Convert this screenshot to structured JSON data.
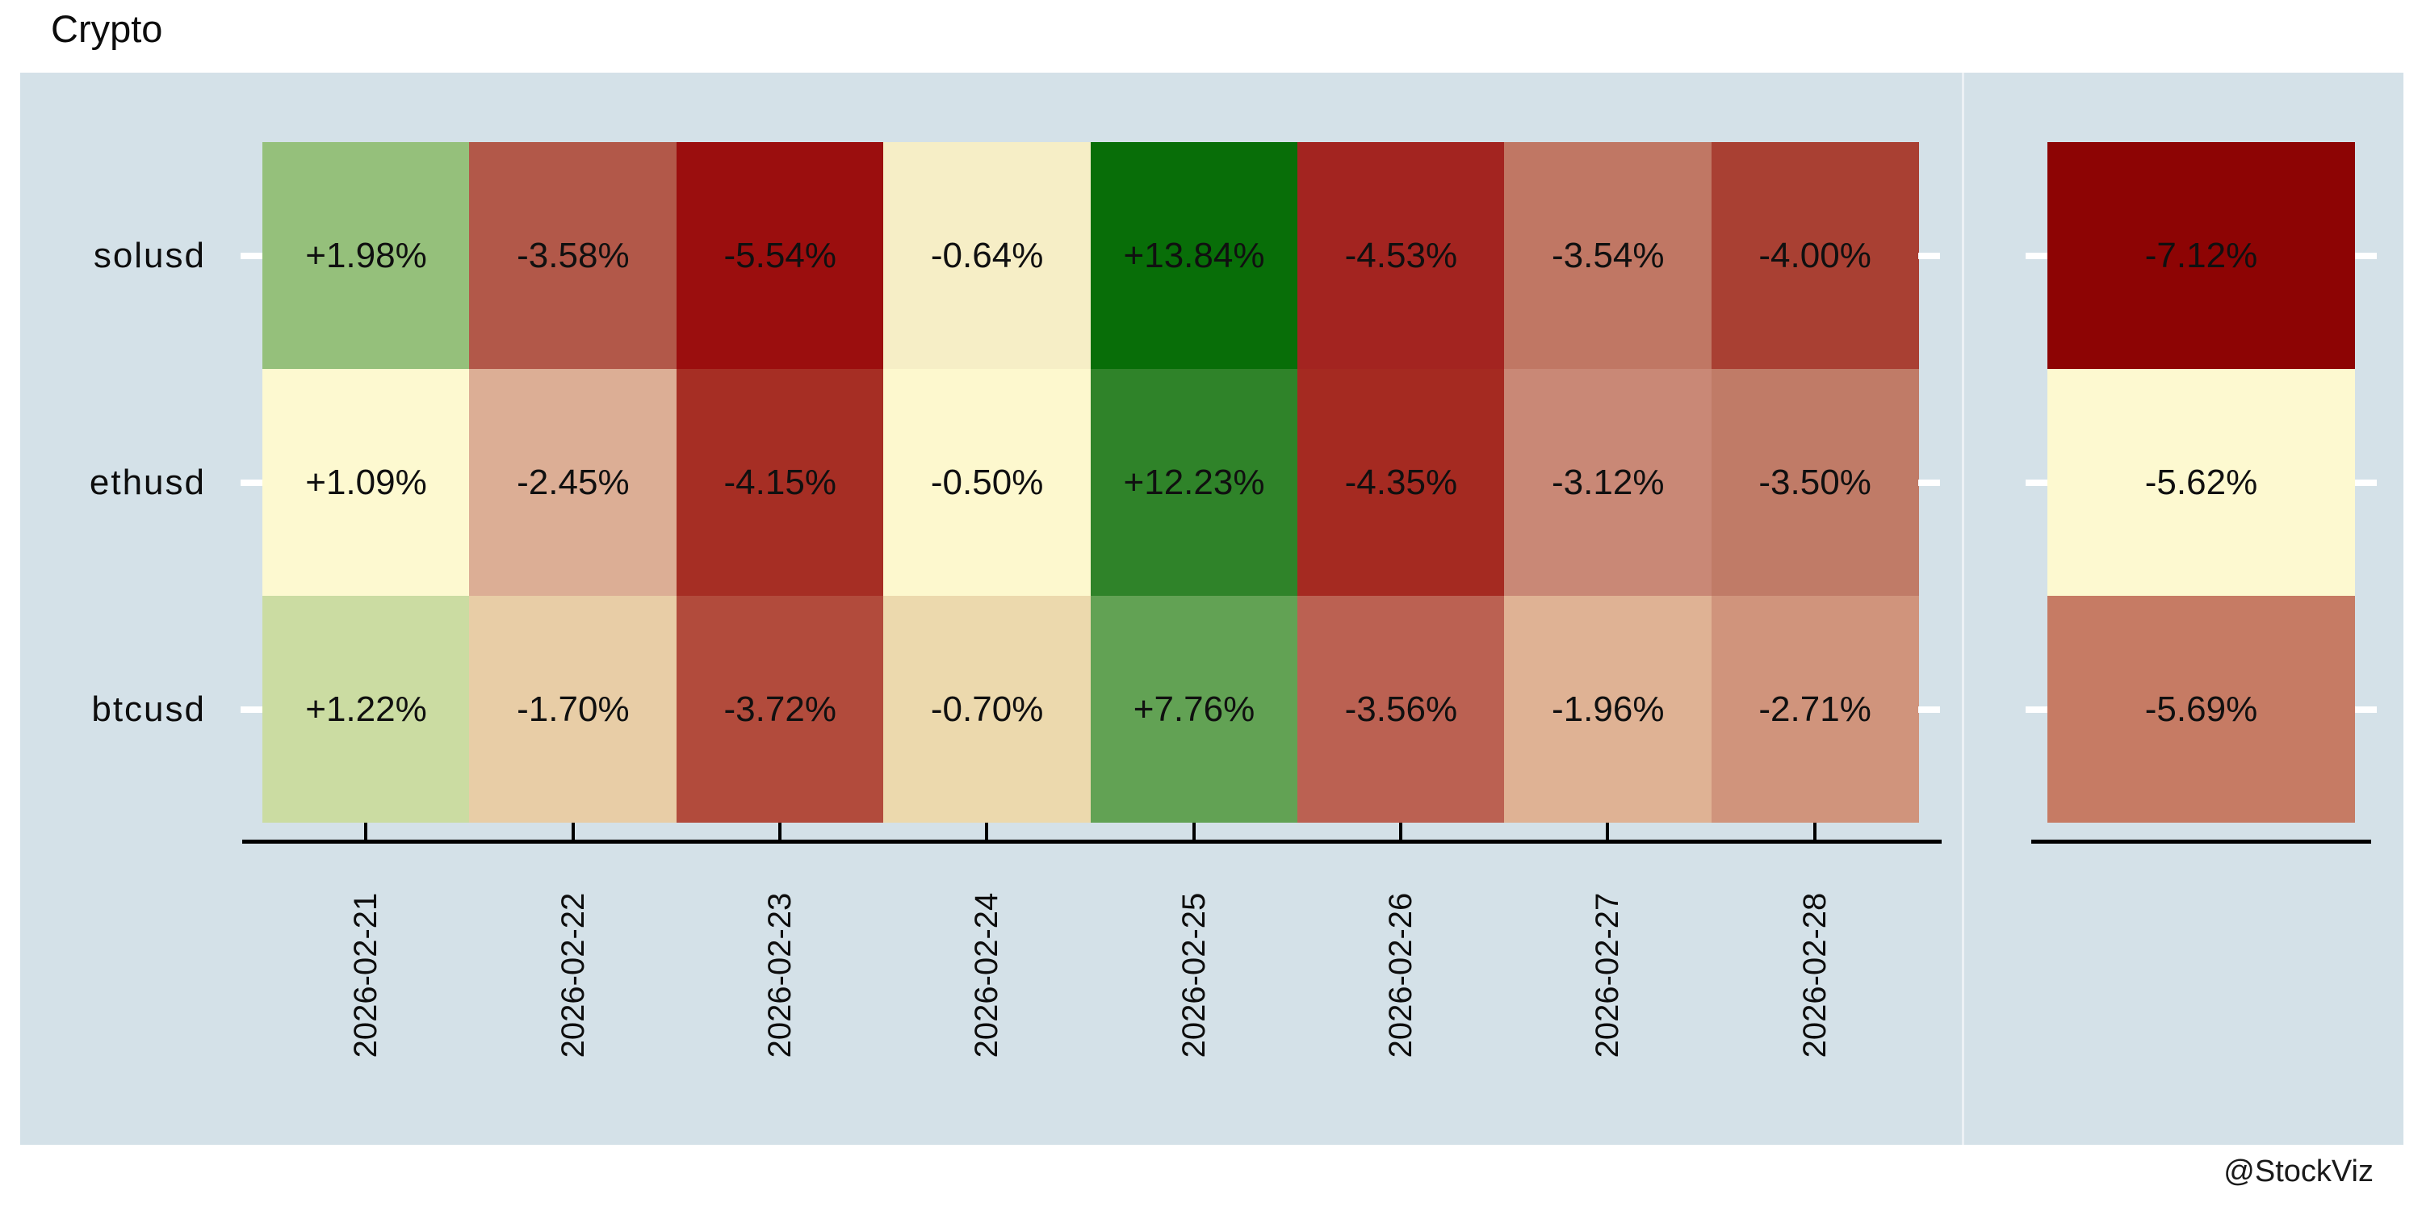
{
  "title": "Crypto",
  "watermark": "@StockViz",
  "colors": {
    "page_bg": "#ffffff",
    "panel_bg": "#d4e1e8",
    "text": "#101010",
    "axis": "#000000",
    "row_tick": "#ffffff",
    "col_tick": "#000000"
  },
  "chart_data": {
    "type": "heatmap",
    "title": "Crypto",
    "unit": "%",
    "grid": "off",
    "legend": "none",
    "rows": [
      "solusd",
      "ethusd",
      "btcusd"
    ],
    "columns": [
      "2026-02-21",
      "2026-02-22",
      "2026-02-23",
      "2026-02-24",
      "2026-02-25",
      "2026-02-26",
      "2026-02-27",
      "2026-02-28"
    ],
    "series": [
      {
        "name": "solusd",
        "values": [
          1.98,
          -3.58,
          -5.54,
          -0.64,
          13.84,
          -4.53,
          -3.54,
          -4.0
        ],
        "labels": [
          "+1.98%",
          "-3.58%",
          "-5.54%",
          "-0.64%",
          "+13.84%",
          "-4.53%",
          "-3.54%",
          "-4.00%"
        ],
        "cell_colors": [
          "#95c07b",
          "#b25849",
          "#9b0e0e",
          "#f6eec6",
          "#086e08",
          "#a32420",
          "#c07764",
          "#a94033"
        ],
        "total": {
          "value": -7.12,
          "label": "-7.12%",
          "color": "#8d0404"
        }
      },
      {
        "name": "ethusd",
        "values": [
          1.09,
          -2.45,
          -4.15,
          -0.5,
          12.23,
          -4.35,
          -3.12,
          -3.5
        ],
        "labels": [
          "+1.09%",
          "-2.45%",
          "-4.15%",
          "-0.50%",
          "+12.23%",
          "-4.35%",
          "-3.12%",
          "-3.50%"
        ],
        "cell_colors": [
          "#fdf9d0",
          "#dcae95",
          "#a62e24",
          "#fdf8ce",
          "#2f8329",
          "#a52a21",
          "#c98876",
          "#c07b67"
        ],
        "total": {
          "value": -5.62,
          "label": "-5.62%",
          "color": "#fdf9d0"
        }
      },
      {
        "name": "btcusd",
        "values": [
          1.22,
          -1.7,
          -3.72,
          -0.7,
          7.76,
          -3.56,
          -1.96,
          -2.71
        ],
        "labels": [
          "+1.22%",
          "-1.70%",
          "-3.72%",
          "-0.70%",
          "+7.76%",
          "-3.56%",
          "-1.96%",
          "-2.71%"
        ],
        "cell_colors": [
          "#cbdca2",
          "#e8cda6",
          "#b24b3c",
          "#ecd9ad",
          "#62a254",
          "#bb6152",
          "#dfb294",
          "#d0947c"
        ],
        "total": {
          "value": -5.69,
          "label": "-5.69%",
          "color": "#c67b64"
        }
      }
    ]
  }
}
